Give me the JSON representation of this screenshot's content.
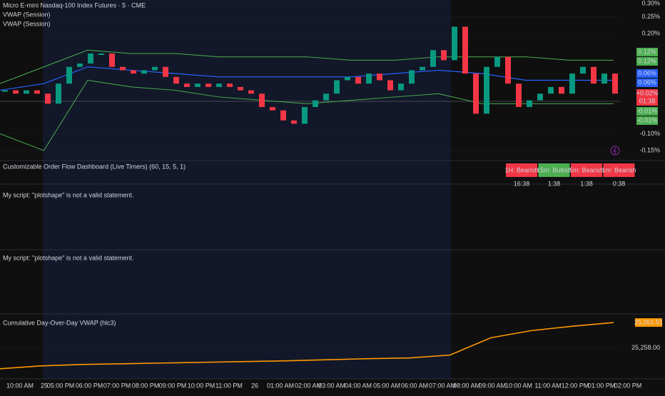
{
  "chart_data": [
    {
      "type": "candlestick",
      "series": [
        {
          "name": "Micro E-mini Nasdaq-100 Index Futures · 5 · CME",
          "up_color": "#089981",
          "down_color": "#f23645",
          "values": [
            0.03,
            0.02,
            0.03,
            0.02,
            -0.01,
            0.05,
            0.1,
            0.11,
            0.14,
            0.14,
            0.1,
            0.09,
            0.08,
            0.09,
            0.1,
            0.07,
            0.05,
            0.04,
            0.05,
            0.04,
            0.05,
            0.04,
            0.03,
            0.02,
            -0.02,
            -0.03,
            -0.06,
            -0.07,
            -0.02,
            0.0,
            0.02,
            0.06,
            0.07,
            0.05,
            0.08,
            0.06,
            0.03,
            0.05,
            0.09,
            0.1,
            0.15,
            0.12,
            0.22,
            0.08,
            -0.04,
            0.1,
            0.13,
            0.05,
            -0.02,
            0.0,
            0.02,
            0.04,
            0.02,
            0.08,
            0.1,
            0.05,
            0.08,
            0.02
          ]
        },
        {
          "name": "VWAP (Session)",
          "color": "#2962ff",
          "values": [
            0.03,
            0.05,
            0.1,
            0.09,
            0.08,
            0.07,
            0.07,
            0.07,
            0.07,
            0.08,
            0.09,
            0.08,
            0.06,
            0.06,
            0.06
          ]
        },
        {
          "name": "VWAP (Session)",
          "color": "#4caf50",
          "upper": [
            0.05,
            0.1,
            0.15,
            0.14,
            0.14,
            0.13,
            0.13,
            0.13,
            0.12,
            0.12,
            0.13,
            0.13,
            0.13,
            0.12,
            0.12
          ],
          "lower": [
            -0.1,
            -0.15,
            0.06,
            0.04,
            0.03,
            0.01,
            0.0,
            -0.01,
            0.0,
            0.01,
            0.02,
            -0.01,
            -0.01,
            -0.01,
            -0.01
          ]
        }
      ],
      "ylim": [
        -0.18,
        0.3
      ],
      "yticks": [
        {
          "value": 0.3,
          "label": "0.30%"
        },
        {
          "value": 0.25,
          "label": "0.25%"
        },
        {
          "value": 0.2,
          "label": "0.20%"
        },
        {
          "value": -0.1,
          "label": "-0.10%"
        },
        {
          "value": -0.15,
          "label": "-0.15%"
        }
      ],
      "price_badges": [
        {
          "label": "0.12%",
          "color": "#4caf50"
        },
        {
          "label": "0.12%",
          "color": "#4caf50"
        },
        {
          "label": "0.06%",
          "color": "#2962ff"
        },
        {
          "label": "0.06%",
          "color": "#2962ff"
        },
        {
          "label": "+0.02%",
          "color": "#f23645"
        },
        {
          "label": "01:38",
          "color": "#f23645"
        },
        {
          "label": "-0.01%",
          "color": "#4caf50"
        },
        {
          "label": "-0.01%",
          "color": "#4caf50"
        }
      ]
    },
    {
      "type": "line",
      "title": "Cumulative Day-Over-Day VWAP (hlc3)",
      "series": [
        {
          "color": "#ff9800",
          "values": [
            25255.1,
            25255.5,
            25255.7,
            25255.8,
            25255.9,
            25256.0,
            25256.1,
            25256.2,
            25256.35,
            25256.5,
            25256.6,
            25257.0,
            25259.4,
            25260.4,
            25261.0,
            25261.51
          ],
          "value_labels": [
            null,
            null,
            null,
            null,
            null,
            null,
            null,
            null,
            null,
            null,
            null,
            null,
            null,
            null,
            null,
            "25,261.51"
          ]
        }
      ],
      "ylim": [
        25253.7,
        25262.7
      ],
      "yticks": [
        {
          "value": 25258,
          "label": "25,258.00"
        }
      ]
    }
  ],
  "time_axis": [
    "10:00 AM",
    "25",
    "05:00 PM",
    "06:00 PM",
    "07:00 PM",
    "08:00 PM",
    "09:00 PM",
    "10:00 PM",
    "11:00 PM",
    "26",
    "01:00 AM",
    "02:00 AM",
    "03:00 AM",
    "04:00 AM",
    "05:00 AM",
    "06:00 AM",
    "07:00 AM",
    "08:00 AM",
    "09:00 AM",
    "10:00 AM",
    "11:00 AM",
    "12:00 PM",
    "01:00 PM",
    "02:00 PM"
  ],
  "dashboard": {
    "title": "Customizable Order Flow Dashboard (Live Timers) (60, 15, 5, 1)",
    "cells": [
      {
        "label": "1H: Bearish",
        "timer": "16:38",
        "color": "#f23645"
      },
      {
        "label": "15m: Bullish",
        "timer": "1:38",
        "color": "#4caf50"
      },
      {
        "label": "5m: Bearish",
        "timer": "1:38",
        "color": "#f23645"
      },
      {
        "label": "1m: Bearish",
        "timer": "0:38",
        "color": "#f23645"
      }
    ]
  },
  "panes": [
    {
      "message": "My script: \"plotshape\" is not a valid statement."
    },
    {
      "message": "My script: \"plotshape\" is not a valid statement."
    }
  ]
}
